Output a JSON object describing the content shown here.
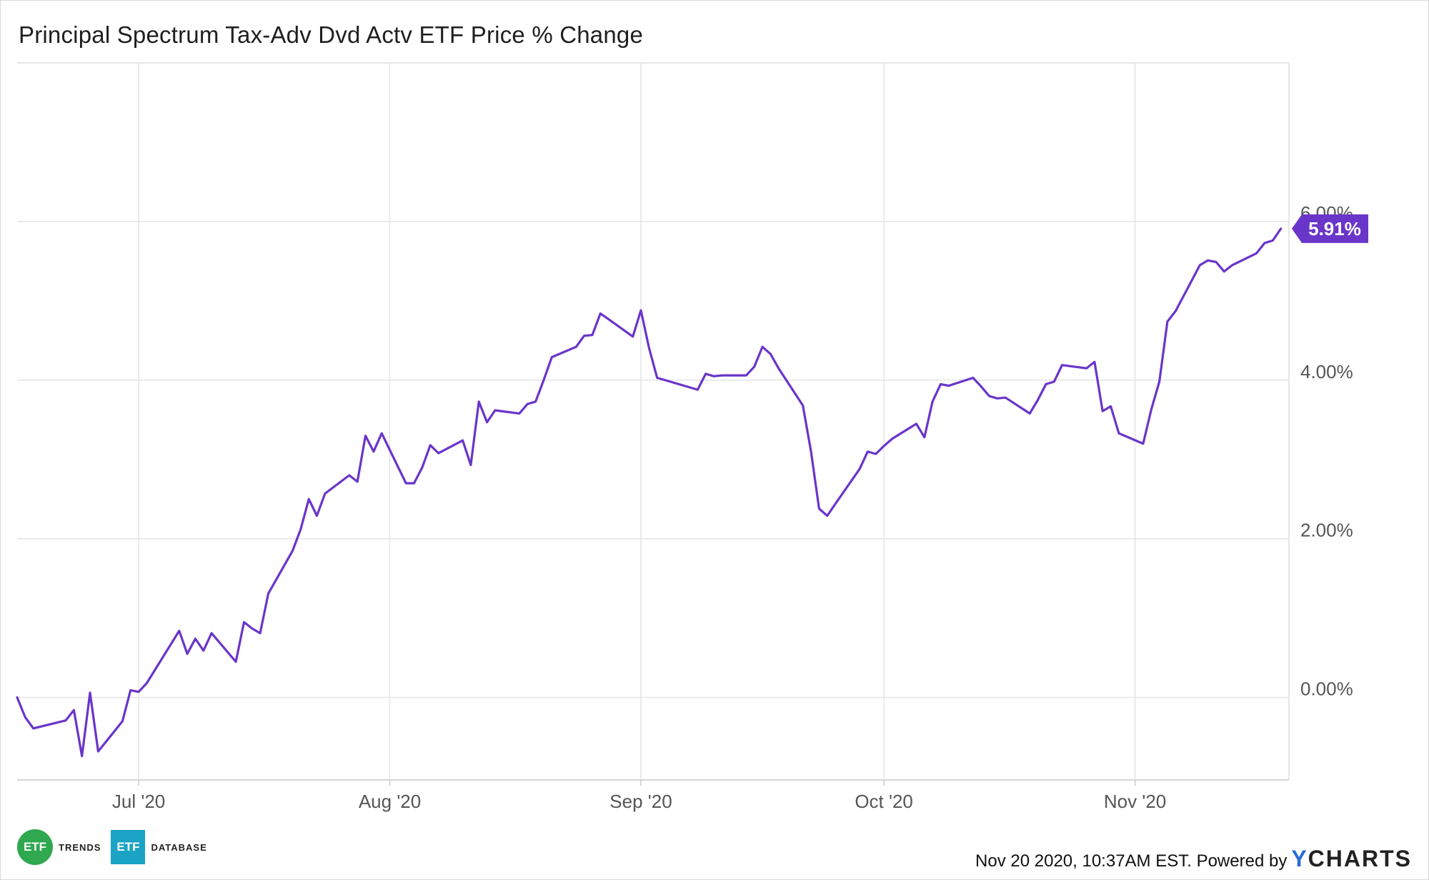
{
  "title": "Principal Spectrum Tax-Adv Dvd Actv ETF Price % Change",
  "footer": {
    "timestamp": "Nov 20 2020, 10:37AM EST.",
    "powered_by": "Powered by",
    "brand_y": "Y",
    "brand_rest": "CHARTS"
  },
  "logo": {
    "trends_badge": "ETF",
    "trends_word": "TRENDS",
    "database_badge": "ETF",
    "database_word": "DATABASE"
  },
  "colors": {
    "line": "#6a35c9",
    "grid": "#e4e4e4",
    "axis_text": "#555555",
    "label_bg": "#6a35c9"
  },
  "chart_data": {
    "type": "line",
    "title": "Principal Spectrum Tax-Adv Dvd Actv ETF Price % Change",
    "xlabel": "",
    "ylabel": "",
    "x_range": [
      "2020-06-16",
      "2020-11-20"
    ],
    "ylim": [
      -1.04,
      8.0
    ],
    "y_ticks": [
      0,
      2,
      4,
      6
    ],
    "y_tick_labels": [
      "0.00%",
      "2.00%",
      "4.00%",
      "6.00%"
    ],
    "x_ticks": [
      "2020-07-01",
      "2020-08-01",
      "2020-09-01",
      "2020-10-01",
      "2020-11-01"
    ],
    "x_tick_labels": [
      "Jul '20",
      "Aug '20",
      "Sep '20",
      "Oct '20",
      "Nov '20"
    ],
    "grid": true,
    "legend": "none",
    "last_value_label": "5.91%",
    "series": [
      {
        "values": [
          [
            "2020-06-16",
            0.0
          ],
          [
            "2020-06-17",
            -0.25
          ],
          [
            "2020-06-18",
            -0.39
          ],
          [
            "2020-06-22",
            -0.29
          ],
          [
            "2020-06-23",
            -0.16
          ],
          [
            "2020-06-24",
            -0.74
          ],
          [
            "2020-06-25",
            0.06
          ],
          [
            "2020-06-26",
            -0.68
          ],
          [
            "2020-06-29",
            -0.3
          ],
          [
            "2020-06-30",
            0.09
          ],
          [
            "2020-07-01",
            0.07
          ],
          [
            "2020-07-02",
            0.18
          ],
          [
            "2020-07-06",
            0.84
          ],
          [
            "2020-07-07",
            0.55
          ],
          [
            "2020-07-08",
            0.74
          ],
          [
            "2020-07-09",
            0.59
          ],
          [
            "2020-07-10",
            0.81
          ],
          [
            "2020-07-13",
            0.45
          ],
          [
            "2020-07-14",
            0.95
          ],
          [
            "2020-07-15",
            0.87
          ],
          [
            "2020-07-16",
            0.81
          ],
          [
            "2020-07-17",
            1.31
          ],
          [
            "2020-07-20",
            1.85
          ],
          [
            "2020-07-21",
            2.12
          ],
          [
            "2020-07-22",
            2.5
          ],
          [
            "2020-07-23",
            2.29
          ],
          [
            "2020-07-24",
            2.57
          ],
          [
            "2020-07-27",
            2.8
          ],
          [
            "2020-07-28",
            2.72
          ],
          [
            "2020-07-29",
            3.3
          ],
          [
            "2020-07-30",
            3.1
          ],
          [
            "2020-07-31",
            3.33
          ],
          [
            "2020-08-03",
            2.7
          ],
          [
            "2020-08-04",
            2.7
          ],
          [
            "2020-08-05",
            2.9
          ],
          [
            "2020-08-06",
            3.18
          ],
          [
            "2020-08-07",
            3.08
          ],
          [
            "2020-08-10",
            3.24
          ],
          [
            "2020-08-11",
            2.93
          ],
          [
            "2020-08-12",
            3.73
          ],
          [
            "2020-08-13",
            3.47
          ],
          [
            "2020-08-14",
            3.62
          ],
          [
            "2020-08-17",
            3.58
          ],
          [
            "2020-08-18",
            3.7
          ],
          [
            "2020-08-19",
            3.73
          ],
          [
            "2020-08-20",
            4.0
          ],
          [
            "2020-08-21",
            4.29
          ],
          [
            "2020-08-24",
            4.42
          ],
          [
            "2020-08-25",
            4.56
          ],
          [
            "2020-08-26",
            4.57
          ],
          [
            "2020-08-27",
            4.84
          ],
          [
            "2020-08-28",
            4.77
          ],
          [
            "2020-08-31",
            4.55
          ],
          [
            "2020-09-01",
            4.88
          ],
          [
            "2020-09-02",
            4.41
          ],
          [
            "2020-09-03",
            4.03
          ],
          [
            "2020-09-08",
            3.88
          ],
          [
            "2020-09-09",
            4.08
          ],
          [
            "2020-09-10",
            4.05
          ],
          [
            "2020-09-11",
            4.06
          ],
          [
            "2020-09-14",
            4.06
          ],
          [
            "2020-09-15",
            4.17
          ],
          [
            "2020-09-16",
            4.42
          ],
          [
            "2020-09-17",
            4.33
          ],
          [
            "2020-09-18",
            4.15
          ],
          [
            "2020-09-21",
            3.68
          ],
          [
            "2020-09-22",
            3.1
          ],
          [
            "2020-09-23",
            2.38
          ],
          [
            "2020-09-24",
            2.29
          ],
          [
            "2020-09-25",
            2.44
          ],
          [
            "2020-09-28",
            2.88
          ],
          [
            "2020-09-29",
            3.1
          ],
          [
            "2020-09-30",
            3.07
          ],
          [
            "2020-10-01",
            3.17
          ],
          [
            "2020-10-02",
            3.26
          ],
          [
            "2020-10-05",
            3.45
          ],
          [
            "2020-10-06",
            3.28
          ],
          [
            "2020-10-07",
            3.73
          ],
          [
            "2020-10-08",
            3.95
          ],
          [
            "2020-10-09",
            3.93
          ],
          [
            "2020-10-12",
            4.03
          ],
          [
            "2020-10-13",
            3.92
          ],
          [
            "2020-10-14",
            3.8
          ],
          [
            "2020-10-15",
            3.77
          ],
          [
            "2020-10-16",
            3.78
          ],
          [
            "2020-10-19",
            3.58
          ],
          [
            "2020-10-20",
            3.75
          ],
          [
            "2020-10-21",
            3.95
          ],
          [
            "2020-10-22",
            3.98
          ],
          [
            "2020-10-23",
            4.19
          ],
          [
            "2020-10-26",
            4.15
          ],
          [
            "2020-10-27",
            4.23
          ],
          [
            "2020-10-28",
            3.61
          ],
          [
            "2020-10-29",
            3.67
          ],
          [
            "2020-10-30",
            3.33
          ],
          [
            "2020-11-02",
            3.2
          ],
          [
            "2020-11-03",
            3.63
          ],
          [
            "2020-11-04",
            3.98
          ],
          [
            "2020-11-05",
            4.74
          ],
          [
            "2020-11-06",
            4.87
          ],
          [
            "2020-11-09",
            5.45
          ],
          [
            "2020-11-10",
            5.51
          ],
          [
            "2020-11-11",
            5.49
          ],
          [
            "2020-11-12",
            5.37
          ],
          [
            "2020-11-13",
            5.45
          ],
          [
            "2020-11-16",
            5.6
          ],
          [
            "2020-11-17",
            5.73
          ],
          [
            "2020-11-18",
            5.76
          ],
          [
            "2020-11-19",
            5.91
          ]
        ]
      }
    ]
  }
}
